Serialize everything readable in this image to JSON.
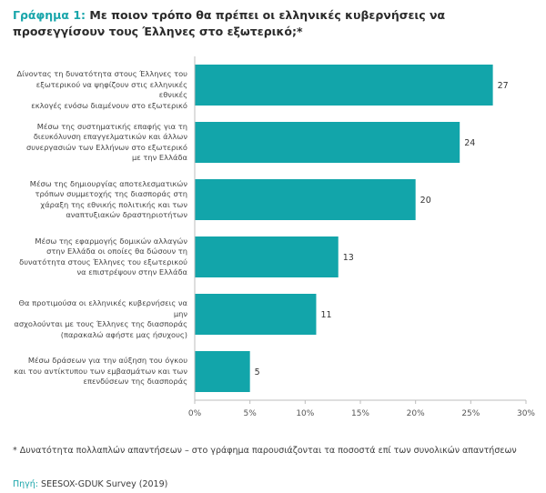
{
  "header": {
    "title_lead": "Γράφημα 1:",
    "title_text": "Με ποιον τρόπο θα πρέπει οι ελληνικές κυβερνήσεις να προσεγγίσουν τους Έλληνες στο εξωτερικό;*"
  },
  "chart_data": {
    "type": "bar",
    "orientation": "horizontal",
    "categories": [
      "Δίνοντας τη δυνατότητα στους Έλληνες του εξωτερικού να ψηφίζουν στις ελληνικές εθνικές εκλογές ενόσω διαμένουν στο εξωτερικό",
      "Μέσω της συστηματικής επαφής για τη διευκόλυνση επαγγελματικών και άλλων συνεργασιών των Ελλήνων στο εξωτερικό με την Ελλάδα",
      "Μέσω της δημιουργίας αποτελεσματικών τρόπων συμμετοχής της διασποράς στη χάραξη της εθνικής πολιτικής και των αναπτυξιακών δραστηριοτήτων",
      "Μέσω της εφαρμογής δομικών αλλαγών στην Ελλάδα οι οποίες θα δώσουν τη δυνατότητα στους Έλληνες του εξωτερικού να επιστρέψουν στην Ελλάδα",
      "Θα προτιμούσα οι ελληνικές κυβερνήσεις να μην ασχολούνται με τους Έλληνες της διασποράς (παρακαλώ αφήστε μας ήσυχους)",
      "Μέσω δράσεων για την αύξηση του όγκου και του αντίκτυπου των εμβασμάτων και των επενδύσεων της διασποράς"
    ],
    "category_lines": [
      [
        "Δίνοντας τη δυνατότητα στους Έλληνες του",
        "εξωτερικού να ψηφίζουν στις ελληνικές εθνικές",
        "εκλογές ενόσω διαμένουν στο εξωτερικό"
      ],
      [
        "Μέσω της συστηματικής επαφής για τη",
        "διευκόλυνση επαγγελματικών και άλλων",
        "συνεργασιών των Ελλήνων στο εξωτερικό",
        "με την Ελλάδα"
      ],
      [
        "Μέσω της δημιουργίας αποτελεσματικών",
        "τρόπων συμμετοχής της διασποράς στη",
        "χάραξη της εθνικής πολιτικής και των",
        "αναπτυξιακών δραστηριοτήτων"
      ],
      [
        "Μέσω της εφαρμογής δομικών αλλαγών",
        "στην Ελλάδα οι οποίες θα δώσουν τη",
        "δυνατότητα στους Έλληνες του εξωτερικού",
        "να επιστρέψουν στην Ελλάδα"
      ],
      [
        "Θα προτιμούσα οι ελληνικές κυβερνήσεις να μην",
        "ασχολούνται με τους Έλληνες της διασποράς",
        "(παρακαλώ αφήστε μας ήσυχους)"
      ],
      [
        "Μέσω δράσεων για την αύξηση του όγκου",
        "και του αντίκτυπου των εμβασμάτων και των",
        "επενδύσεων της διασποράς"
      ]
    ],
    "values": [
      27,
      24,
      20,
      13,
      11,
      5
    ],
    "data_labels": [
      "27",
      "24",
      "20",
      "13",
      "11",
      "5"
    ],
    "xlim": [
      0,
      30
    ],
    "xticks": [
      0,
      5,
      10,
      15,
      20,
      25,
      30
    ],
    "xtick_labels": [
      "0%",
      "5%",
      "10%",
      "15%",
      "20%",
      "25%",
      "30%"
    ],
    "grid": false,
    "bar_color": "#12a5aa",
    "xlabel": "",
    "ylabel": ""
  },
  "footer": {
    "footnote": "* Δυνατότητα πολλαπλών απαντήσεων – στο γράφημα παρουσιάζονται τα ποσοστά επί των συνολικών απαντήσεων",
    "source_key": "Πηγή:",
    "source_text": "SEESOX-GDUK Survey (2019)"
  },
  "colors": {
    "accent": "#1aa6ab",
    "bar": "#12a5aa",
    "axis": "#bdbdbd"
  }
}
